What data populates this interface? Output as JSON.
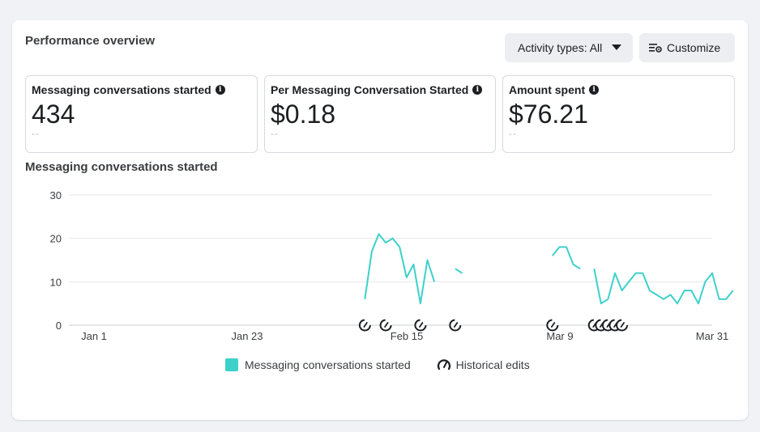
{
  "header": {
    "title": "Performance overview",
    "activity_button": "Activity types: All",
    "customize_button": "Customize"
  },
  "metrics": [
    {
      "label": "Messaging conversations started",
      "value": "434",
      "compare": "--"
    },
    {
      "label": "Per Messaging Conversation Started",
      "value": "$0.18",
      "compare": "--"
    },
    {
      "label": "Amount spent",
      "value": "$76.21",
      "compare": "--"
    }
  ],
  "chart_title": "Messaging conversations started",
  "legend": {
    "series": "Messaging conversations started",
    "edits": "Historical edits"
  },
  "colors": {
    "series": "#3dd1ca",
    "grid": "#e4e6eb"
  },
  "chart_data": {
    "type": "line",
    "ylim": [
      0,
      30
    ],
    "yticks": [
      "0",
      "10",
      "20",
      "30"
    ],
    "xticks": [
      "Jan 1",
      "Jan 23",
      "Feb 15",
      "Mar 9",
      "Mar 31"
    ],
    "series": [
      {
        "segments": [
          [
            [
              40,
              6
            ],
            [
              41,
              17
            ],
            [
              42,
              21
            ],
            [
              43,
              19
            ],
            [
              44,
              20
            ],
            [
              45,
              18
            ],
            [
              46,
              11
            ],
            [
              47,
              14
            ],
            [
              48,
              5
            ],
            [
              49,
              15
            ],
            [
              50,
              10
            ]
          ],
          [
            [
              53,
              13
            ],
            [
              54,
              12
            ]
          ],
          [
            [
              67,
              16
            ],
            [
              68,
              18
            ],
            [
              69,
              18
            ],
            [
              70,
              14
            ],
            [
              71,
              13
            ]
          ],
          [
            [
              73,
              13
            ],
            [
              74,
              5
            ],
            [
              75,
              6
            ],
            [
              76,
              12
            ],
            [
              77,
              8
            ],
            [
              78,
              10
            ],
            [
              79,
              12
            ],
            [
              80,
              12
            ],
            [
              81,
              8
            ],
            [
              82,
              7
            ],
            [
              83,
              6
            ],
            [
              84,
              7
            ],
            [
              85,
              5
            ],
            [
              86,
              8
            ],
            [
              87,
              8
            ],
            [
              88,
              5
            ],
            [
              89,
              10
            ],
            [
              90,
              12
            ],
            [
              91,
              6
            ],
            [
              92,
              6
            ],
            [
              93,
              8
            ]
          ]
        ]
      }
    ],
    "x_range_days": [
      2,
      93
    ],
    "historical_edits_days": [
      40,
      43,
      48,
      53,
      67,
      73,
      74,
      75,
      76,
      77
    ]
  }
}
